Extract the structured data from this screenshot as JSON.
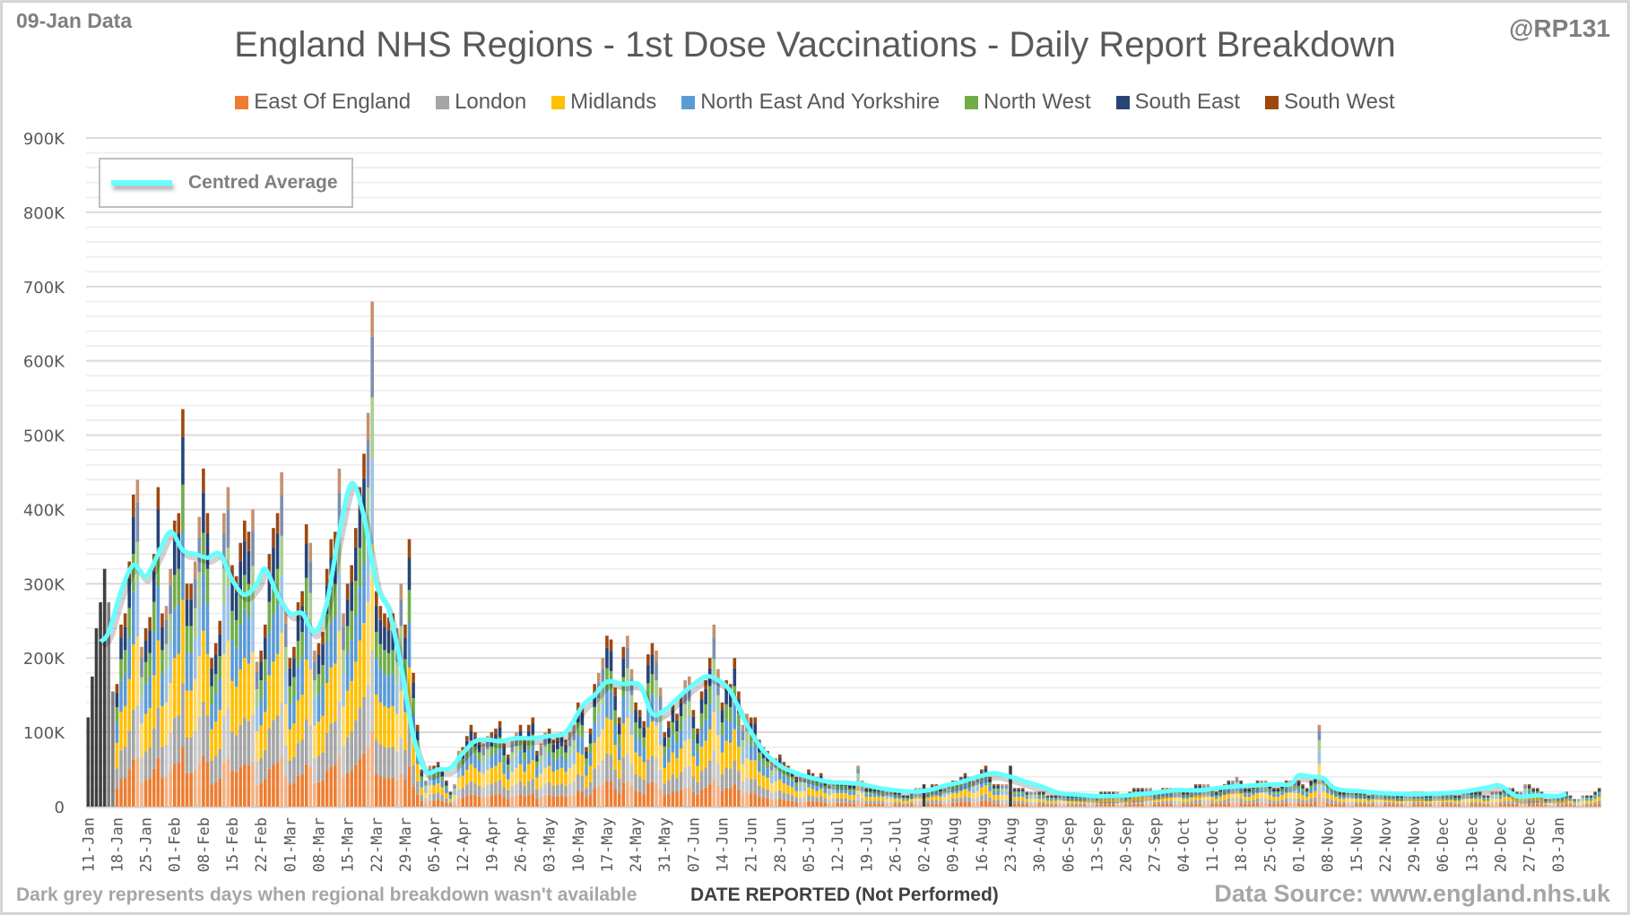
{
  "header": {
    "data_date": "09-Jan Data",
    "handle": "@RP131",
    "title": "England NHS Regions - 1st Dose Vaccinations - Daily Report Breakdown"
  },
  "footer": {
    "note": "Dark grey represents days when regional breakdown wasn't available",
    "xlabel": "DATE REPORTED (Not Performed)",
    "source": "Data Source: www.england.nhs.uk"
  },
  "chart_data": {
    "type": "bar",
    "stacked": true,
    "title": "England NHS Regions - 1st Dose Vaccinations - Daily Report Breakdown",
    "xlabel": "DATE REPORTED (Not Performed)",
    "ylabel": "",
    "ylim": [
      0,
      900000
    ],
    "yticks": [
      0,
      100000,
      200000,
      300000,
      400000,
      500000,
      600000,
      700000,
      800000,
      900000
    ],
    "ytick_labels": [
      "0",
      "100K",
      "200K",
      "300K",
      "400K",
      "500K",
      "600K",
      "700K",
      "800K",
      "900K"
    ],
    "grid": true,
    "legend_position": "top",
    "start_date": "11-Jan",
    "x_tick_labels": [
      "11-Jan",
      "18-Jan",
      "25-Jan",
      "01-Feb",
      "08-Feb",
      "15-Feb",
      "22-Feb",
      "01-Mar",
      "08-Mar",
      "15-Mar",
      "22-Mar",
      "29-Mar",
      "05-Apr",
      "12-Apr",
      "19-Apr",
      "26-Apr",
      "03-May",
      "10-May",
      "17-May",
      "24-May",
      "31-May",
      "07-Jun",
      "14-Jun",
      "21-Jun",
      "28-Jun",
      "05-Jul",
      "12-Jul",
      "19-Jul",
      "26-Jul",
      "02-Aug",
      "09-Aug",
      "16-Aug",
      "23-Aug",
      "30-Aug",
      "06-Sep",
      "13-Sep",
      "20-Sep",
      "27-Sep",
      "04-Oct",
      "11-Oct",
      "18-Oct",
      "25-Oct",
      "01-Nov",
      "08-Nov",
      "15-Nov",
      "22-Nov",
      "29-Nov",
      "06-Dec",
      "13-Dec",
      "20-Dec",
      "27-Dec",
      "03-Jan"
    ],
    "series_names": [
      "East Of England",
      "London",
      "Midlands",
      "North East And Yorkshire",
      "North West",
      "South East",
      "South West"
    ],
    "series_colors": [
      "#ED7D31",
      "#A5A5A5",
      "#FFC000",
      "#5B9BD5",
      "#70AD47",
      "#264478",
      "#9E480E"
    ],
    "series_share": [
      0.15,
      0.16,
      0.21,
      0.17,
      0.12,
      0.12,
      0.07
    ],
    "unavailable_color": "#404040",
    "unavailable_days": [
      0,
      1,
      2,
      3,
      4,
      5,
      6
    ],
    "daily_totals_k": [
      120,
      175,
      240,
      275,
      320,
      275,
      155,
      165,
      245,
      260,
      330,
      420,
      440,
      215,
      240,
      255,
      340,
      430,
      260,
      270,
      320,
      385,
      395,
      535,
      300,
      300,
      330,
      390,
      455,
      395,
      200,
      220,
      250,
      395,
      430,
      325,
      310,
      355,
      385,
      370,
      400,
      195,
      210,
      245,
      340,
      375,
      395,
      450,
      265,
      200,
      215,
      275,
      290,
      380,
      355,
      210,
      220,
      235,
      320,
      360,
      370,
      455,
      260,
      300,
      325,
      375,
      430,
      475,
      530,
      680,
      290,
      270,
      260,
      255,
      260,
      240,
      300,
      245,
      360,
      180,
      110,
      50,
      35,
      55,
      55,
      60,
      50,
      35,
      20,
      30,
      75,
      80,
      95,
      110,
      100,
      90,
      85,
      95,
      100,
      105,
      115,
      85,
      70,
      90,
      100,
      110,
      90,
      110,
      120,
      75,
      85,
      100,
      105,
      90,
      95,
      100,
      90,
      100,
      110,
      140,
      135,
      80,
      105,
      165,
      180,
      200,
      230,
      225,
      160,
      120,
      215,
      230,
      185,
      140,
      130,
      115,
      205,
      220,
      210,
      160,
      100,
      115,
      140,
      125,
      150,
      170,
      175,
      130,
      105,
      155,
      170,
      200,
      245,
      185,
      140,
      170,
      165,
      200,
      155,
      110,
      125,
      120,
      120,
      90,
      80,
      75,
      60,
      65,
      70,
      60,
      55,
      50,
      40,
      40,
      40,
      50,
      45,
      40,
      45,
      35,
      30,
      35,
      35,
      35,
      35,
      30,
      30,
      55,
      35,
      25,
      25,
      25,
      25,
      25,
      20,
      20,
      20,
      20,
      15,
      15,
      20,
      25,
      25,
      25,
      25,
      30,
      30,
      25,
      25,
      30,
      35,
      35,
      40,
      45,
      40,
      35,
      40,
      50,
      55,
      40,
      30,
      30,
      30,
      30,
      20,
      25,
      25,
      25,
      20,
      20,
      20,
      20,
      20,
      15,
      15,
      15,
      15,
      15,
      15,
      15,
      15,
      15,
      15,
      15,
      15,
      15,
      20,
      20,
      20,
      20,
      20,
      15,
      15,
      20,
      25,
      25,
      25,
      25,
      25,
      20,
      20,
      25,
      25,
      25,
      25,
      25,
      20,
      20,
      25,
      30,
      30,
      30,
      30,
      25,
      20,
      25,
      30,
      35,
      35,
      40,
      35,
      25,
      25,
      30,
      35,
      35,
      35,
      30,
      25,
      25,
      30,
      35,
      35,
      35,
      35,
      30,
      25,
      35,
      40,
      110,
      40,
      35,
      30,
      25,
      20,
      20,
      20,
      20,
      20,
      20,
      20,
      15,
      20,
      20,
      20,
      20,
      20,
      20,
      15,
      15,
      20,
      20,
      20,
      20,
      20,
      15,
      15,
      20,
      20,
      20,
      20,
      20,
      15,
      15,
      20,
      20,
      20,
      20,
      20,
      15,
      15,
      20,
      20,
      20,
      25,
      25,
      25,
      20,
      20,
      30,
      30,
      25,
      25,
      20,
      10,
      10,
      15,
      15,
      15,
      20,
      15,
      10,
      10,
      15,
      15,
      15,
      20,
      25
    ],
    "dark_days_k": [
      {
        "day": 203,
        "value": 30
      },
      {
        "day": 224,
        "value": 55
      }
    ],
    "centred_average_name": "Centred Average",
    "centred_average_color": "#66FFFF",
    "centred_average_k": [
      {
        "day": 3,
        "value": 222
      },
      {
        "day": 5,
        "value": 235
      },
      {
        "day": 8,
        "value": 290
      },
      {
        "day": 11,
        "value": 325
      },
      {
        "day": 14,
        "value": 310
      },
      {
        "day": 17,
        "value": 340
      },
      {
        "day": 20,
        "value": 370
      },
      {
        "day": 23,
        "value": 345
      },
      {
        "day": 26,
        "value": 340
      },
      {
        "day": 29,
        "value": 335
      },
      {
        "day": 32,
        "value": 340
      },
      {
        "day": 35,
        "value": 305
      },
      {
        "day": 38,
        "value": 285
      },
      {
        "day": 41,
        "value": 300
      },
      {
        "day": 43,
        "value": 320
      },
      {
        "day": 46,
        "value": 285
      },
      {
        "day": 49,
        "value": 260
      },
      {
        "day": 52,
        "value": 260
      },
      {
        "day": 55,
        "value": 235
      },
      {
        "day": 58,
        "value": 275
      },
      {
        "day": 61,
        "value": 370
      },
      {
        "day": 64,
        "value": 435
      },
      {
        "day": 67,
        "value": 390
      },
      {
        "day": 70,
        "value": 300
      },
      {
        "day": 73,
        "value": 265
      },
      {
        "day": 76,
        "value": 190
      },
      {
        "day": 79,
        "value": 95
      },
      {
        "day": 82,
        "value": 48
      },
      {
        "day": 85,
        "value": 50
      },
      {
        "day": 88,
        "value": 52
      },
      {
        "day": 91,
        "value": 72
      },
      {
        "day": 94,
        "value": 88
      },
      {
        "day": 97,
        "value": 90
      },
      {
        "day": 100,
        "value": 88
      },
      {
        "day": 104,
        "value": 92
      },
      {
        "day": 108,
        "value": 92
      },
      {
        "day": 112,
        "value": 95
      },
      {
        "day": 116,
        "value": 100
      },
      {
        "day": 120,
        "value": 135
      },
      {
        "day": 123,
        "value": 150
      },
      {
        "day": 126,
        "value": 168
      },
      {
        "day": 130,
        "value": 165
      },
      {
        "day": 134,
        "value": 163
      },
      {
        "day": 137,
        "value": 125
      },
      {
        "day": 140,
        "value": 130
      },
      {
        "day": 143,
        "value": 145
      },
      {
        "day": 146,
        "value": 160
      },
      {
        "day": 150,
        "value": 175
      },
      {
        "day": 153,
        "value": 170
      },
      {
        "day": 156,
        "value": 155
      },
      {
        "day": 160,
        "value": 110
      },
      {
        "day": 164,
        "value": 75
      },
      {
        "day": 168,
        "value": 55
      },
      {
        "day": 172,
        "value": 45
      },
      {
        "day": 176,
        "value": 38
      },
      {
        "day": 180,
        "value": 33
      },
      {
        "day": 184,
        "value": 32
      },
      {
        "day": 188,
        "value": 30
      },
      {
        "day": 192,
        "value": 25
      },
      {
        "day": 196,
        "value": 22
      },
      {
        "day": 200,
        "value": 20
      },
      {
        "day": 204,
        "value": 22
      },
      {
        "day": 208,
        "value": 28
      },
      {
        "day": 212,
        "value": 33
      },
      {
        "day": 216,
        "value": 40
      },
      {
        "day": 220,
        "value": 45
      },
      {
        "day": 224,
        "value": 40
      },
      {
        "day": 228,
        "value": 33
      },
      {
        "day": 232,
        "value": 26
      },
      {
        "day": 236,
        "value": 18
      },
      {
        "day": 240,
        "value": 16
      },
      {
        "day": 246,
        "value": 14
      },
      {
        "day": 252,
        "value": 15
      },
      {
        "day": 258,
        "value": 18
      },
      {
        "day": 264,
        "value": 22
      },
      {
        "day": 270,
        "value": 22
      },
      {
        "day": 276,
        "value": 26
      },
      {
        "day": 282,
        "value": 28
      },
      {
        "day": 288,
        "value": 30
      },
      {
        "day": 292,
        "value": 30
      },
      {
        "day": 294,
        "value": 42
      },
      {
        "day": 297,
        "value": 40
      },
      {
        "day": 300,
        "value": 38
      },
      {
        "day": 303,
        "value": 24
      },
      {
        "day": 310,
        "value": 20
      },
      {
        "day": 318,
        "value": 17
      },
      {
        "day": 326,
        "value": 17
      },
      {
        "day": 334,
        "value": 20
      },
      {
        "day": 340,
        "value": 26
      },
      {
        "day": 343,
        "value": 28
      },
      {
        "day": 347,
        "value": 14
      },
      {
        "day": 352,
        "value": 15
      },
      {
        "day": 357,
        "value": 14
      },
      {
        "day": 359,
        "value": 18
      }
    ]
  }
}
